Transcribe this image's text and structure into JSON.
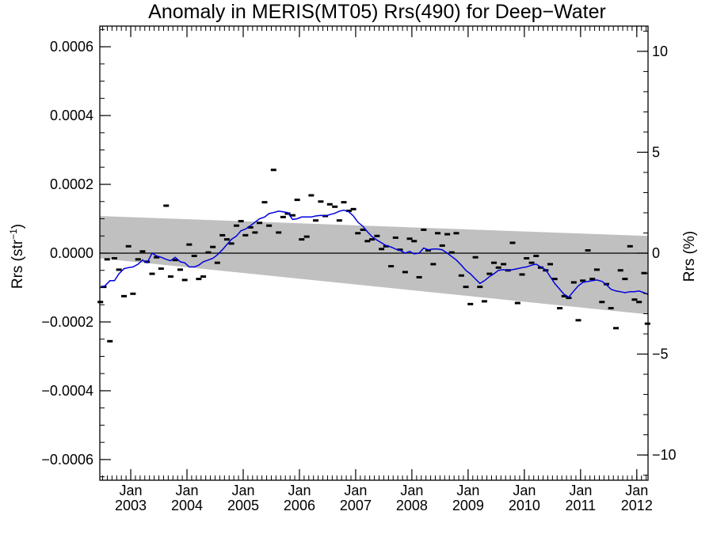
{
  "chart_data": {
    "type": "scatter",
    "title": "Anomaly in MERIS(MT05) Rrs(490) for Deep−Water",
    "ylabel": "Rrs (str",
    "ylabel_sup": "−1",
    "ylabel_close": ")",
    "y2label": "Rrs (%)",
    "xlim": [
      2002.45,
      2012.2
    ],
    "ylim": [
      -0.00066,
      0.00066
    ],
    "y2lim": [
      -11.25,
      11.25
    ],
    "y_ticks": [
      {
        "value": 0.0006,
        "label": "0.0006"
      },
      {
        "value": 0.0004,
        "label": "0.0004"
      },
      {
        "value": 0.0002,
        "label": "0.0002"
      },
      {
        "value": 0.0,
        "label": "0.0000"
      },
      {
        "value": -0.0002,
        "label": "−0.0002"
      },
      {
        "value": -0.0004,
        "label": "−0.0004"
      },
      {
        "value": -0.0006,
        "label": "−0.0006"
      }
    ],
    "y2_ticks": [
      {
        "value": 10,
        "label": "10"
      },
      {
        "value": 5,
        "label": "5"
      },
      {
        "value": 0,
        "label": "0"
      },
      {
        "value": -5,
        "label": "−5"
      },
      {
        "value": -10,
        "label": "−10"
      }
    ],
    "x_ticks": [
      {
        "value": 2003,
        "month": "Jan",
        "year": "2003"
      },
      {
        "value": 2004,
        "month": "Jan",
        "year": "2004"
      },
      {
        "value": 2005,
        "month": "Jan",
        "year": "2005"
      },
      {
        "value": 2006,
        "month": "Jan",
        "year": "2006"
      },
      {
        "value": 2007,
        "month": "Jan",
        "year": "2007"
      },
      {
        "value": 2008,
        "month": "Jan",
        "year": "2008"
      },
      {
        "value": 2009,
        "month": "Jan",
        "year": "2009"
      },
      {
        "value": 2010,
        "month": "Jan",
        "year": "2010"
      },
      {
        "value": 2011,
        "month": "Jan",
        "year": "2011"
      },
      {
        "value": 2012,
        "month": "Jan",
        "year": "2012"
      }
    ],
    "uncertainty_band": {
      "x": [
        2002.45,
        2012.2
      ],
      "upper": [
        0.000108,
        5e-05
      ],
      "lower": [
        -1.5e-05,
        -0.000178
      ],
      "color": "#c0c0c0"
    },
    "zero_line": true,
    "series": [
      {
        "kind": "points",
        "color": "#000000",
        "points": [
          [
            2002.46,
            -0.000142
          ],
          [
            2002.52,
            -9.8e-05
          ],
          [
            2002.58,
            -1.8e-05
          ],
          [
            2002.63,
            -0.000256
          ],
          [
            2002.71,
            -1.5e-05
          ],
          [
            2002.79,
            -4.8e-05
          ],
          [
            2002.88,
            -0.000125
          ],
          [
            2002.96,
            2e-05
          ],
          [
            2003.04,
            -0.000118
          ],
          [
            2003.13,
            -1.8e-05
          ],
          [
            2003.21,
            5e-06
          ],
          [
            2003.29,
            -2.5e-05
          ],
          [
            2003.38,
            -6e-05
          ],
          [
            2003.46,
            -1.2e-05
          ],
          [
            2003.54,
            -4.5e-05
          ],
          [
            2003.63,
            0.000138
          ],
          [
            2003.71,
            -6.8e-05
          ],
          [
            2003.79,
            -2e-05
          ],
          [
            2003.88,
            -4.8e-05
          ],
          [
            2003.96,
            -7.8e-05
          ],
          [
            2004.04,
            2.5e-05
          ],
          [
            2004.13,
            -8e-06
          ],
          [
            2004.21,
            -7.5e-05
          ],
          [
            2004.29,
            -6.8e-05
          ],
          [
            2004.38,
            2e-06
          ],
          [
            2004.46,
            1.8e-05
          ],
          [
            2004.54,
            -2.8e-05
          ],
          [
            2004.63,
            5.2e-05
          ],
          [
            2004.71,
            4e-05
          ],
          [
            2004.79,
            2.8e-05
          ],
          [
            2004.88,
            8e-05
          ],
          [
            2004.96,
            9.3e-05
          ],
          [
            2005.04,
            5.2e-05
          ],
          [
            2005.13,
            7.5e-05
          ],
          [
            2005.21,
            6e-05
          ],
          [
            2005.29,
            8.8e-05
          ],
          [
            2005.38,
            0.000148
          ],
          [
            2005.46,
            8e-05
          ],
          [
            2005.54,
            0.000242
          ],
          [
            2005.63,
            6e-05
          ],
          [
            2005.71,
            0.000105
          ],
          [
            2005.79,
            0.000115
          ],
          [
            2005.88,
            0.00011
          ],
          [
            2005.96,
            0.000155
          ],
          [
            2006.04,
            4e-05
          ],
          [
            2006.13,
            4.8e-05
          ],
          [
            2006.21,
            0.000168
          ],
          [
            2006.29,
            9.5e-05
          ],
          [
            2006.38,
            0.00015
          ],
          [
            2006.46,
            0.000108
          ],
          [
            2006.54,
            0.000142
          ],
          [
            2006.63,
            0.000135
          ],
          [
            2006.71,
            9.5e-05
          ],
          [
            2006.79,
            0.000148
          ],
          [
            2006.88,
            0.000123
          ],
          [
            2006.96,
            0.000128
          ],
          [
            2007.04,
            5.8e-05
          ],
          [
            2007.13,
            6.8e-05
          ],
          [
            2007.21,
            3.5e-05
          ],
          [
            2007.29,
            4e-05
          ],
          [
            2007.38,
            5e-05
          ],
          [
            2007.46,
            1.2e-05
          ],
          [
            2007.54,
            2e-05
          ],
          [
            2007.63,
            -3.8e-05
          ],
          [
            2007.71,
            4.5e-05
          ],
          [
            2007.79,
            1e-05
          ],
          [
            2007.88,
            -5.5e-05
          ],
          [
            2007.96,
            4.2e-05
          ],
          [
            2008.04,
            3.5e-05
          ],
          [
            2008.13,
            -7e-05
          ],
          [
            2008.21,
            6.8e-05
          ],
          [
            2008.29,
            8e-06
          ],
          [
            2008.38,
            -3.2e-05
          ],
          [
            2008.46,
            5.8e-05
          ],
          [
            2008.54,
            2.2e-05
          ],
          [
            2008.63,
            5.5e-05
          ],
          [
            2008.71,
            2e-06
          ],
          [
            2008.79,
            5.8e-05
          ],
          [
            2008.88,
            -6.5e-05
          ],
          [
            2008.96,
            -9.8e-05
          ],
          [
            2009.04,
            -0.000148
          ],
          [
            2009.13,
            -1.2e-05
          ],
          [
            2009.21,
            -9.8e-05
          ],
          [
            2009.29,
            -0.00014
          ],
          [
            2009.38,
            -6e-05
          ],
          [
            2009.46,
            -2.8e-05
          ],
          [
            2009.54,
            -4.2e-05
          ],
          [
            2009.63,
            -3.2e-05
          ],
          [
            2009.71,
            -5e-05
          ],
          [
            2009.79,
            3e-05
          ],
          [
            2009.88,
            -0.000145
          ],
          [
            2009.96,
            -6.2e-05
          ],
          [
            2010.04,
            -1.5e-05
          ],
          [
            2010.13,
            -2.8e-05
          ],
          [
            2010.21,
            -8e-06
          ],
          [
            2010.29,
            -4.2e-05
          ],
          [
            2010.38,
            -5e-05
          ],
          [
            2010.46,
            -3.2e-05
          ],
          [
            2010.54,
            -7.5e-05
          ],
          [
            2010.63,
            -0.00016
          ],
          [
            2010.71,
            -0.000125
          ],
          [
            2010.79,
            -0.00013
          ],
          [
            2010.88,
            -8.5e-05
          ],
          [
            2010.96,
            -0.000195
          ],
          [
            2011.04,
            -8e-05
          ],
          [
            2011.13,
            8e-06
          ],
          [
            2011.21,
            -7.5e-05
          ],
          [
            2011.29,
            -4.8e-05
          ],
          [
            2011.38,
            -0.000142
          ],
          [
            2011.46,
            -9e-05
          ],
          [
            2011.54,
            -0.00016
          ],
          [
            2011.63,
            -0.000218
          ],
          [
            2011.71,
            -5e-05
          ],
          [
            2011.79,
            -7.5e-05
          ],
          [
            2011.88,
            2e-05
          ],
          [
            2011.96,
            -0.000135
          ],
          [
            2012.04,
            -0.000142
          ],
          [
            2012.13,
            -5.8e-05
          ],
          [
            2012.19,
            -0.000205
          ]
        ]
      },
      {
        "kind": "line",
        "color": "#0000dd",
        "points": [
          [
            2002.46,
            -0.0001
          ],
          [
            2002.54,
            -9.5e-05
          ],
          [
            2002.63,
            -8e-05
          ],
          [
            2002.71,
            -8e-05
          ],
          [
            2002.79,
            -6e-05
          ],
          [
            2002.88,
            -4.5e-05
          ],
          [
            2002.96,
            -4.2e-05
          ],
          [
            2003.04,
            -4e-05
          ],
          [
            2003.13,
            -3.2e-05
          ],
          [
            2003.21,
            -2e-05
          ],
          [
            2003.29,
            -2.8e-05
          ],
          [
            2003.38,
            0.0
          ],
          [
            2003.46,
            -8e-06
          ],
          [
            2003.54,
            -1.2e-05
          ],
          [
            2003.63,
            -1.8e-05
          ],
          [
            2003.71,
            -2.2e-05
          ],
          [
            2003.79,
            -1.2e-05
          ],
          [
            2003.88,
            -2.5e-05
          ],
          [
            2003.96,
            -2.8e-05
          ],
          [
            2004.04,
            -4e-05
          ],
          [
            2004.13,
            -4e-05
          ],
          [
            2004.21,
            -3.5e-05
          ],
          [
            2004.29,
            -2.5e-05
          ],
          [
            2004.38,
            -2e-05
          ],
          [
            2004.46,
            -1.5e-05
          ],
          [
            2004.54,
            -5e-06
          ],
          [
            2004.63,
            1e-05
          ],
          [
            2004.71,
            2.5e-05
          ],
          [
            2004.79,
            4e-05
          ],
          [
            2004.88,
            5e-05
          ],
          [
            2004.96,
            6.5e-05
          ],
          [
            2005.04,
            7e-05
          ],
          [
            2005.13,
            8e-05
          ],
          [
            2005.21,
            9e-05
          ],
          [
            2005.29,
            0.0001
          ],
          [
            2005.38,
            0.000105
          ],
          [
            2005.46,
            0.000115
          ],
          [
            2005.54,
            0.000118
          ],
          [
            2005.63,
            0.000122
          ],
          [
            2005.71,
            0.00012
          ],
          [
            2005.79,
            0.000118
          ],
          [
            2005.88,
            9.8e-05
          ],
          [
            2005.96,
            0.0001
          ],
          [
            2006.04,
            0.000105
          ],
          [
            2006.13,
            0.000105
          ],
          [
            2006.21,
            0.000105
          ],
          [
            2006.29,
            0.000108
          ],
          [
            2006.38,
            0.00011
          ],
          [
            2006.46,
            0.000108
          ],
          [
            2006.54,
            0.000112
          ],
          [
            2006.63,
            0.000116
          ],
          [
            2006.71,
            0.000122
          ],
          [
            2006.79,
            0.000125
          ],
          [
            2006.88,
            0.00012
          ],
          [
            2006.96,
            0.000108
          ],
          [
            2007.04,
            9e-05
          ],
          [
            2007.13,
            7.8e-05
          ],
          [
            2007.21,
            6.2e-05
          ],
          [
            2007.29,
            4.8e-05
          ],
          [
            2007.38,
            3.8e-05
          ],
          [
            2007.46,
            3e-05
          ],
          [
            2007.54,
            2.2e-05
          ],
          [
            2007.63,
            1.8e-05
          ],
          [
            2007.71,
            1.2e-05
          ],
          [
            2007.79,
            8e-06
          ],
          [
            2007.88,
            0.0
          ],
          [
            2007.96,
            5e-06
          ],
          [
            2008.04,
            -2e-06
          ],
          [
            2008.13,
            0.0
          ],
          [
            2008.21,
            1.5e-05
          ],
          [
            2008.29,
            1e-05
          ],
          [
            2008.38,
            1.2e-05
          ],
          [
            2008.46,
            1.2e-05
          ],
          [
            2008.54,
            1e-05
          ],
          [
            2008.63,
            0.0
          ],
          [
            2008.71,
            -1e-05
          ],
          [
            2008.79,
            -2e-05
          ],
          [
            2008.88,
            -3.5e-05
          ],
          [
            2008.96,
            -5e-05
          ],
          [
            2009.04,
            -6e-05
          ],
          [
            2009.13,
            -7.5e-05
          ],
          [
            2009.21,
            -8.8e-05
          ],
          [
            2009.29,
            -8e-05
          ],
          [
            2009.38,
            -6.8e-05
          ],
          [
            2009.46,
            -6e-05
          ],
          [
            2009.54,
            -5e-05
          ],
          [
            2009.63,
            -4.8e-05
          ],
          [
            2009.71,
            -5e-05
          ],
          [
            2009.79,
            -4.8e-05
          ],
          [
            2009.88,
            -4.5e-05
          ],
          [
            2009.96,
            -4.2e-05
          ],
          [
            2010.04,
            -4e-05
          ],
          [
            2010.13,
            -3.5e-05
          ],
          [
            2010.21,
            -3.2e-05
          ],
          [
            2010.29,
            -4e-05
          ],
          [
            2010.38,
            -4.8e-05
          ],
          [
            2010.46,
            -6.8e-05
          ],
          [
            2010.54,
            -8.8e-05
          ],
          [
            2010.63,
            -0.000105
          ],
          [
            2010.71,
            -0.00012
          ],
          [
            2010.79,
            -0.000128
          ],
          [
            2010.88,
            -0.00011
          ],
          [
            2010.96,
            -9.5e-05
          ],
          [
            2011.04,
            -8.5e-05
          ],
          [
            2011.13,
            -8.2e-05
          ],
          [
            2011.21,
            -8e-05
          ],
          [
            2011.29,
            -7.8e-05
          ],
          [
            2011.38,
            -8.2e-05
          ],
          [
            2011.46,
            -9.2e-05
          ],
          [
            2011.54,
            -0.000105
          ],
          [
            2011.63,
            -0.00011
          ],
          [
            2011.71,
            -0.000112
          ],
          [
            2011.79,
            -0.000115
          ],
          [
            2011.88,
            -0.000112
          ],
          [
            2011.96,
            -0.000112
          ],
          [
            2012.04,
            -0.00011
          ],
          [
            2012.13,
            -0.000115
          ],
          [
            2012.2,
            -0.00012
          ]
        ]
      }
    ]
  }
}
